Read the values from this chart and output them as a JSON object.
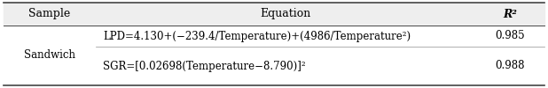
{
  "col_headers": [
    "Sample",
    "Equation",
    "R²"
  ],
  "sample": "Sandwich",
  "row1_eq": "LPD=4.130+(−239.4/Temperature)+(4986/Temperature²)",
  "row1_r2": "0.985",
  "row2_eq": "SGR=[0.02698(Temperature−8.790)]²",
  "row2_r2": "0.988",
  "header_bg": "#eeeeee",
  "body_bg": "#ffffff",
  "border_color": "#444444",
  "font_size": 8.5,
  "header_font_size": 9.0,
  "fig_w": 6.18,
  "fig_h": 1.0,
  "dpi": 100
}
